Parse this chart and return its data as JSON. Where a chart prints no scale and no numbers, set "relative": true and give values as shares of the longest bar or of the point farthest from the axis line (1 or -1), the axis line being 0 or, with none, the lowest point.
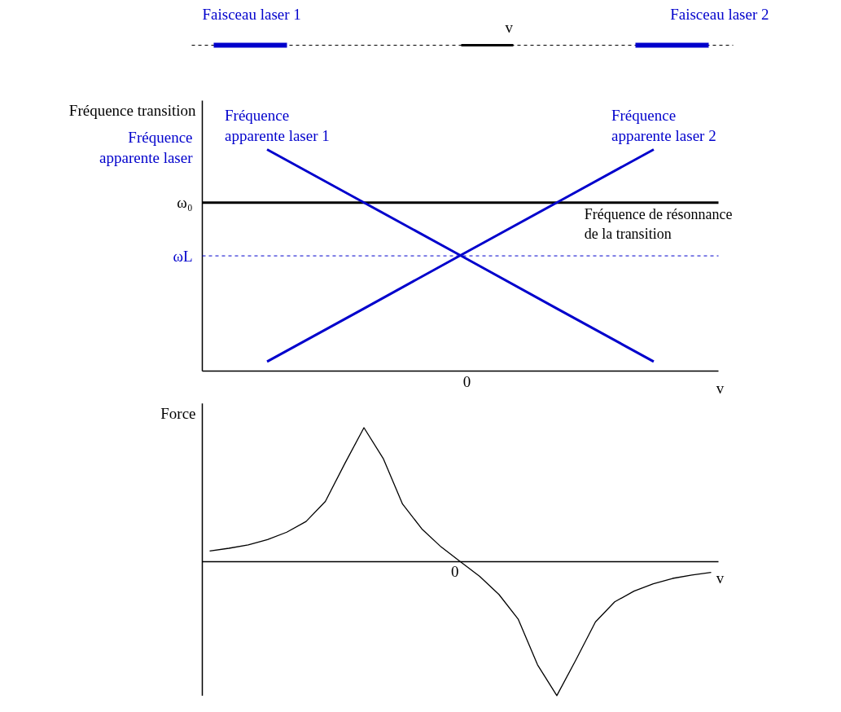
{
  "chart_data": [
    {
      "type": "other",
      "annotations": [
        "Faisceau laser 1",
        "v",
        "Faisceau laser 2"
      ]
    },
    {
      "type": "line",
      "relative": true,
      "categories": [
        null,
        null,
        null,
        null,
        null
      ],
      "xlabel": "v",
      "ylabel": "Fréquence transition",
      "grid": false,
      "annotations": [
        "Fréquence apparente laser",
        {
          "text": "Fréquence de résonnance de la transition",
          "y": 0.76
        },
        "0"
      ],
      "series": [
        {
          "name": "Fréquence apparente laser 1",
          "color": "#0000cc",
          "values": [
            1.0,
            0.761,
            0.522,
            0.282,
            0.043
          ]
        },
        {
          "name": "Fréquence apparente laser 2",
          "color": "#0000cc",
          "values": [
            0.043,
            0.282,
            0.522,
            0.761,
            1.0
          ]
        }
      ],
      "ref_lines": [
        {
          "axis": "y",
          "value": 0.76,
          "label": "ω₀",
          "color": "#000000",
          "line_style": "solid"
        },
        {
          "axis": "y",
          "value": 0.52,
          "label": "ωL",
          "color": "#0000cc",
          "line_style": "dashed"
        }
      ]
    },
    {
      "type": "line",
      "relative": true,
      "categories": [
        null,
        null,
        null,
        null,
        null,
        null,
        null,
        null,
        null,
        null,
        null,
        null,
        null,
        null,
        null,
        null,
        null,
        null,
        null,
        null,
        null,
        null,
        null,
        null,
        null,
        null,
        null
      ],
      "xlabel": "v",
      "ylabel": "Force",
      "grid": false,
      "annotations": [
        "0"
      ],
      "series": [
        {
          "color": "#000000",
          "values": [
            0.08,
            0.1,
            0.125,
            0.165,
            0.22,
            0.3,
            0.45,
            0.73,
            1.0,
            0.77,
            0.43,
            0.245,
            0.11,
            0,
            -0.11,
            -0.245,
            -0.43,
            -0.77,
            -1.0,
            -0.73,
            -0.45,
            -0.3,
            -0.22,
            -0.165,
            -0.125,
            -0.1,
            -0.08
          ]
        }
      ]
    }
  ]
}
